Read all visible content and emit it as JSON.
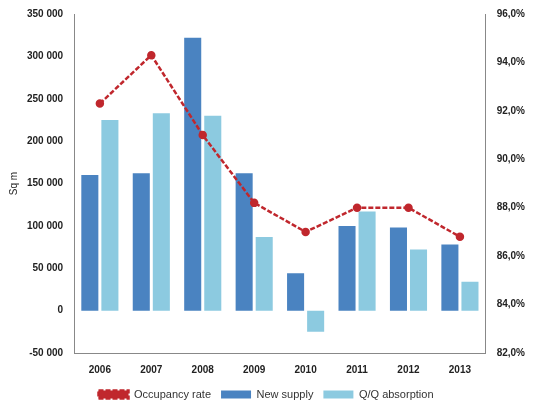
{
  "chart_data": {
    "type": "bar",
    "y_label": "Sq m",
    "categories": [
      "2006",
      "2007",
      "2008",
      "2009",
      "2010",
      "2011",
      "2012",
      "2013"
    ],
    "series": [
      {
        "name": "New supply",
        "type": "bar",
        "color": "#4a83c1",
        "values": [
          160000,
          162000,
          322000,
          162000,
          44000,
          100000,
          98000,
          78000
        ]
      },
      {
        "name": "Q/Q absorption",
        "type": "bar",
        "color": "#8ccae0",
        "values": [
          225000,
          233000,
          230000,
          87000,
          -25000,
          117000,
          72000,
          34000
        ]
      },
      {
        "name": "Occupancy rate",
        "type": "line",
        "axis": "y2",
        "color": "#c0272d",
        "marker": "circle",
        "line_style": "dashed",
        "values": [
          92.3,
          94.3,
          91.0,
          88.2,
          87.0,
          88.0,
          88.0,
          86.8
        ]
      }
    ],
    "ylim": [
      -50000,
      350000
    ],
    "yticks": [
      {
        "value": -50000,
        "label": "-50 000"
      },
      0,
      {
        "value": 50000,
        "label": "50 000"
      },
      {
        "value": 100000,
        "label": "100 000"
      },
      {
        "value": 150000,
        "label": "150 000"
      },
      {
        "value": 200000,
        "label": "200 000"
      },
      {
        "value": 250000,
        "label": "250 000"
      },
      {
        "value": 300000,
        "label": "300 000"
      },
      {
        "value": 350000,
        "label": "350 000"
      }
    ],
    "y2lim": [
      82,
      96
    ],
    "y2ticks": [
      {
        "value": 82,
        "label": "82,0%"
      },
      {
        "value": 84,
        "label": "84,0%"
      },
      {
        "value": 86,
        "label": "86,0%"
      },
      {
        "value": 88,
        "label": "88,0%"
      },
      {
        "value": 90,
        "label": "90,0%"
      },
      {
        "value": 92,
        "label": "92,0%"
      },
      {
        "value": 94,
        "label": "94,0%"
      },
      {
        "value": 96,
        "label": "96,0%"
      }
    ],
    "grid": false,
    "legend": "bottom"
  }
}
